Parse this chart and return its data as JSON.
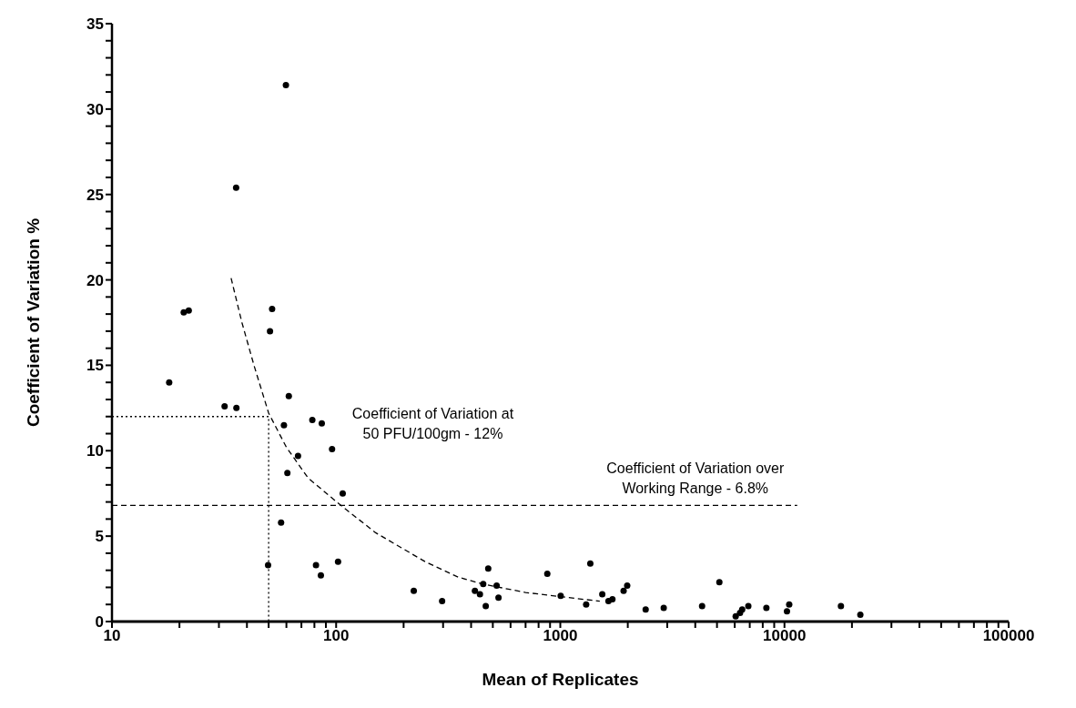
{
  "chart_data": {
    "type": "scatter",
    "xlabel": "Mean of Replicates",
    "ylabel": "Coefficient of Variation %",
    "log": "x",
    "marker": "circle",
    "xlim": [
      10,
      100000
    ],
    "ylim": [
      0,
      35
    ],
    "xticks": [
      10,
      {
        "value": 20,
        "label": null
      },
      {
        "value": 30,
        "label": null
      },
      {
        "value": 40,
        "label": null
      },
      {
        "value": 50,
        "label": null
      },
      {
        "value": 60,
        "label": null
      },
      {
        "value": 70,
        "label": null
      },
      {
        "value": 80,
        "label": null
      },
      {
        "value": 90,
        "label": null
      },
      100,
      {
        "value": 200,
        "label": null
      },
      {
        "value": 300,
        "label": null
      },
      {
        "value": 400,
        "label": null
      },
      {
        "value": 500,
        "label": null
      },
      {
        "value": 600,
        "label": null
      },
      {
        "value": 700,
        "label": null
      },
      {
        "value": 800,
        "label": null
      },
      {
        "value": 900,
        "label": null
      },
      1000,
      {
        "value": 2000,
        "label": null
      },
      {
        "value": 3000,
        "label": null
      },
      {
        "value": 4000,
        "label": null
      },
      {
        "value": 5000,
        "label": null
      },
      {
        "value": 6000,
        "label": null
      },
      {
        "value": 7000,
        "label": null
      },
      {
        "value": 8000,
        "label": null
      },
      {
        "value": 9000,
        "label": null
      },
      10000,
      {
        "value": 20000,
        "label": null
      },
      {
        "value": 30000,
        "label": null
      },
      {
        "value": 40000,
        "label": null
      },
      {
        "value": 50000,
        "label": null
      },
      {
        "value": 60000,
        "label": null
      },
      {
        "value": 70000,
        "label": null
      },
      {
        "value": 80000,
        "label": null
      },
      {
        "value": 90000,
        "label": null
      },
      100000
    ],
    "yticks": [
      0,
      {
        "value": 1,
        "label": null
      },
      {
        "value": 2,
        "label": null
      },
      {
        "value": 3,
        "label": null
      },
      {
        "value": 4,
        "label": null
      },
      5,
      {
        "value": 6,
        "label": null
      },
      {
        "value": 7,
        "label": null
      },
      {
        "value": 8,
        "label": null
      },
      {
        "value": 9,
        "label": null
      },
      10,
      {
        "value": 11,
        "label": null
      },
      {
        "value": 12,
        "label": null
      },
      {
        "value": 13,
        "label": null
      },
      {
        "value": 14,
        "label": null
      },
      15,
      {
        "value": 16,
        "label": null
      },
      {
        "value": 17,
        "label": null
      },
      {
        "value": 18,
        "label": null
      },
      {
        "value": 19,
        "label": null
      },
      20,
      {
        "value": 21,
        "label": null
      },
      {
        "value": 22,
        "label": null
      },
      {
        "value": 23,
        "label": null
      },
      {
        "value": 24,
        "label": null
      },
      25,
      {
        "value": 26,
        "label": null
      },
      {
        "value": 27,
        "label": null
      },
      {
        "value": 28,
        "label": null
      },
      {
        "value": 29,
        "label": null
      },
      30,
      {
        "value": 31,
        "label": null
      },
      {
        "value": 32,
        "label": null
      },
      {
        "value": 33,
        "label": null
      },
      {
        "value": 34,
        "label": null
      },
      35
    ],
    "series": [
      {
        "color": "#000000",
        "x": [
          18,
          20.9,
          22,
          31.8,
          35.8,
          35.9,
          49.7,
          50.7,
          51.8,
          56.8,
          58.5,
          59.7,
          60.6,
          61.5,
          67.6,
          78.3,
          81.3,
          85.5,
          86.3,
          95.9,
          102,
          107,
          222,
          297,
          416,
          438,
          453,
          465,
          477,
          520,
          530,
          875,
          1004,
          1304,
          1361,
          1539,
          1640,
          1708,
          1916,
          1988,
          2403,
          2893,
          4290,
          5124,
          6059,
          6336,
          6477,
          6899,
          8304,
          10260,
          10500,
          17860,
          21800
        ],
        "values": [
          14.0,
          18.1,
          18.2,
          12.6,
          25.4,
          12.5,
          3.3,
          17.0,
          18.3,
          5.8,
          11.5,
          31.4,
          8.7,
          13.2,
          9.7,
          11.8,
          3.3,
          2.7,
          11.6,
          10.1,
          3.5,
          7.5,
          1.8,
          1.2,
          1.8,
          1.6,
          2.2,
          0.9,
          3.1,
          2.1,
          1.4,
          2.8,
          1.5,
          1.0,
          3.4,
          1.6,
          1.2,
          1.3,
          1.8,
          2.1,
          0.7,
          0.8,
          0.9,
          2.3,
          0.3,
          0.5,
          0.7,
          0.9,
          0.8,
          0.6,
          1.0,
          0.9,
          0.4
        ]
      },
      {
        "type": "line",
        "color": "#000000",
        "line_style": "dashed",
        "marker": "none",
        "x": [
          34,
          38,
          43,
          50,
          60,
          75,
          105,
          150,
          250,
          350,
          450,
          700,
          1000,
          1500
        ],
        "values": [
          20.1,
          17.5,
          15,
          12.2,
          10.2,
          8.4,
          6.8,
          5.2,
          3.5,
          2.6,
          2.2,
          1.7,
          1.46,
          1.19
        ]
      },
      {
        "type": "line",
        "color": "#000000",
        "line_style": "dotted",
        "marker": "none",
        "x": [
          10,
          50,
          50
        ],
        "values": [
          12,
          12,
          0
        ]
      },
      {
        "type": "line",
        "color": "#000000",
        "line_style": "dashed",
        "marker": "none",
        "x": [
          10,
          11400
        ],
        "values": [
          6.8,
          6.8
        ]
      }
    ],
    "annotations": [
      "Coefficient of Variation at\n50 PFU/100gm - 12%",
      "Coefficient of Variation over\nWorking Range - 6.8%"
    ]
  }
}
